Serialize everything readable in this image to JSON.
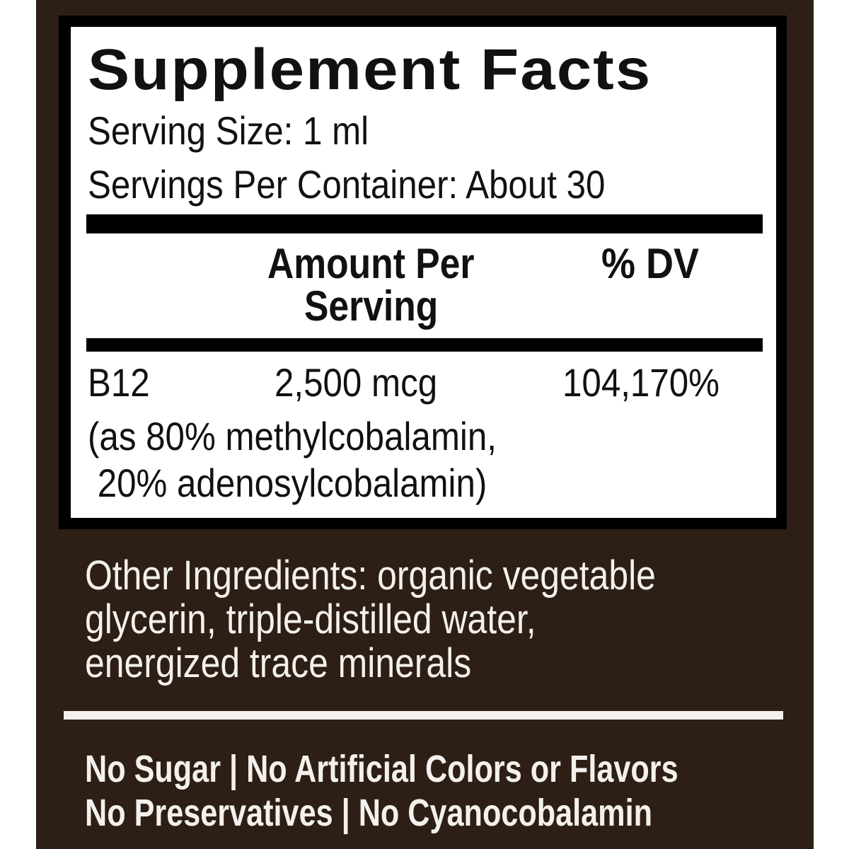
{
  "label": {
    "title": "Supplement Facts",
    "serving_size": "Serving Size: 1 ml",
    "servings_per_container": "Servings Per Container: About 30",
    "header": {
      "amount_line1": "Amount Per",
      "amount_line2": "Serving",
      "dv": "% DV"
    },
    "rows": [
      {
        "name": "B12",
        "amount": "2,500 mcg",
        "dv": "104,170%",
        "note_line1": "(as 80% methylcobalamin,",
        "note_line2": " 20% adenosylcobalamin)"
      }
    ]
  },
  "other_ingredients": {
    "line1": "Other Ingredients: organic vegetable",
    "line2": "glycerin, triple-distilled water,",
    "line3": "energized trace minerals"
  },
  "claims": {
    "line1": "No Sugar | No Artificial Colors or Flavors",
    "line2": "No Preservatives | No Cyanocobalamin"
  },
  "colors": {
    "panel": "#2d1f16",
    "box_border": "#000000",
    "text_light": "#f4f1ec"
  }
}
